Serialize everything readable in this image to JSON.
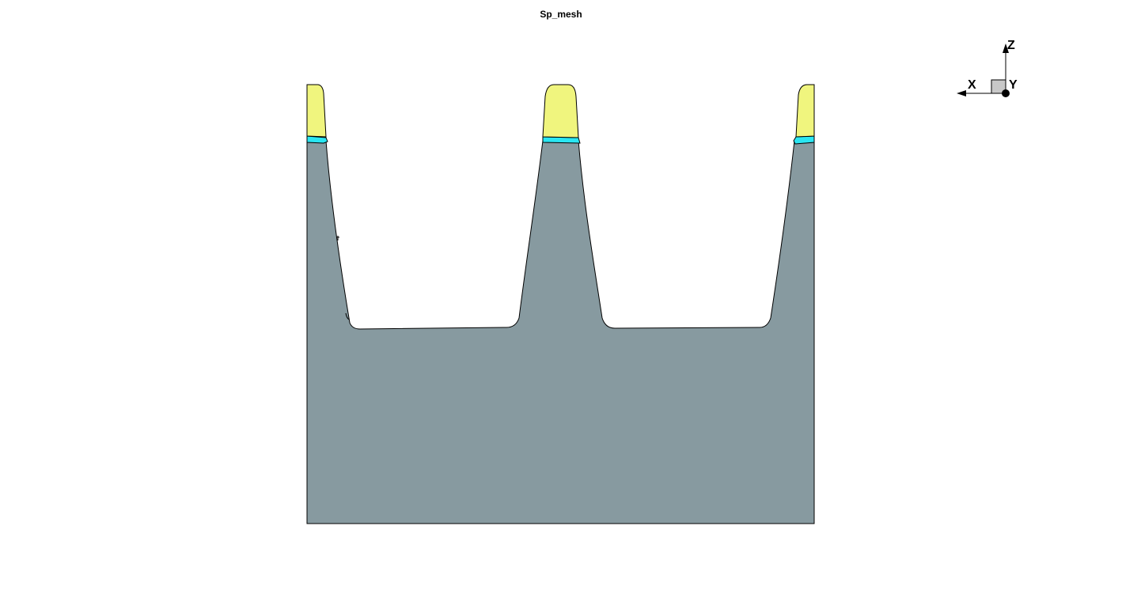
{
  "title": "Sp_mesh",
  "axes": {
    "x_label": "X",
    "y_label": "Y",
    "z_label": "Z"
  },
  "colors": {
    "substrate": "#879aa0",
    "cap_layer": "#f0f57e",
    "thin_layer": "#2ae6f2",
    "outline": "#000000",
    "background": "#ffffff",
    "axis_box": "#c8c8c8"
  },
  "structure": {
    "type": "2D cross-section mesh",
    "regions": [
      "substrate",
      "cap_layer",
      "thin_layer"
    ],
    "fin_count": 3
  }
}
